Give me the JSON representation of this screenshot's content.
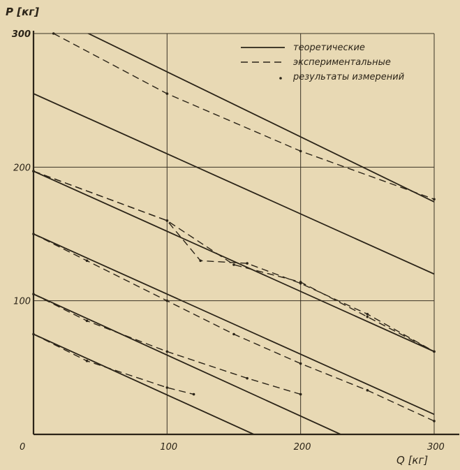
{
  "chart_data": {
    "type": "line",
    "title": "",
    "xlabel": "Q [кг]",
    "ylabel": "P [кг]",
    "xlim": [
      0,
      300
    ],
    "ylim": [
      0,
      300
    ],
    "x_ticks": [
      0,
      100,
      200,
      300
    ],
    "y_ticks": [
      100,
      200,
      300
    ],
    "x_tick_labels": [
      "0",
      "100",
      "200",
      "300"
    ],
    "y_tick_labels": [
      "100",
      "200",
      "300"
    ],
    "grid": true,
    "legend_position": "top-right",
    "legend": [
      {
        "label": "теоретические",
        "style": "solid"
      },
      {
        "label": "экспериментальные",
        "style": "dashed"
      },
      {
        "label": "результаты измерений",
        "style": "dot"
      }
    ],
    "theoretical": [
      {
        "x": [
          0,
          300
        ],
        "y": [
          320,
          174
        ]
      },
      {
        "x": [
          0,
          300
        ],
        "y": [
          255,
          120
        ]
      },
      {
        "x": [
          0,
          300
        ],
        "y": [
          197,
          62
        ]
      },
      {
        "x": [
          0,
          300
        ],
        "y": [
          150,
          15
        ]
      },
      {
        "x": [
          0,
          230
        ],
        "y": [
          105,
          0
        ]
      },
      {
        "x": [
          0,
          165
        ],
        "y": [
          75,
          0
        ]
      }
    ],
    "experimental": [
      {
        "x": [
          15,
          100,
          200,
          300
        ],
        "y": [
          300,
          255,
          212,
          176
        ]
      },
      {
        "x": [
          0,
          100,
          125,
          160,
          200,
          250,
          300
        ],
        "y": [
          197,
          160,
          130,
          128,
          113,
          90,
          62
        ]
      },
      {
        "x": [
          0,
          100,
          150,
          200,
          250,
          300
        ],
        "y": [
          197,
          160,
          127,
          114,
          88,
          62
        ]
      },
      {
        "x": [
          0,
          40,
          100,
          150,
          200,
          250,
          300
        ],
        "y": [
          150,
          130,
          100,
          75,
          53,
          33,
          10
        ]
      },
      {
        "x": [
          0,
          40,
          100,
          160,
          200
        ],
        "y": [
          105,
          85,
          62,
          42,
          30
        ]
      },
      {
        "x": [
          0,
          40,
          100,
          120
        ],
        "y": [
          75,
          55,
          35,
          30
        ]
      }
    ],
    "colors": {
      "background": "#e8d9b4",
      "ink": "#2b2418",
      "grid": "#3a3224"
    }
  }
}
